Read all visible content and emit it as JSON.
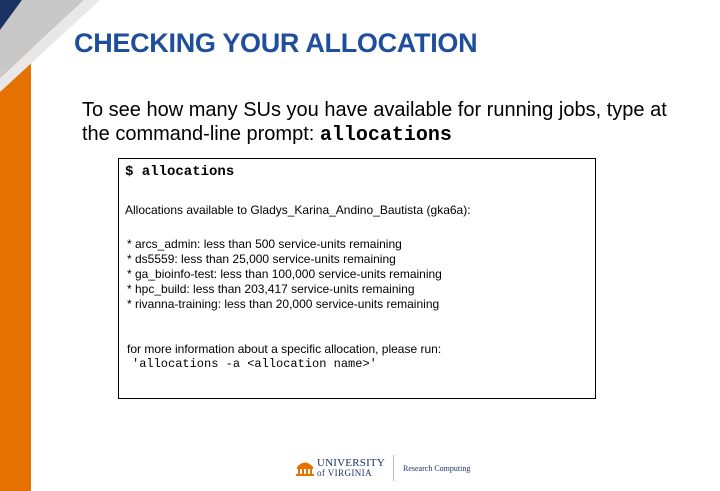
{
  "slide": {
    "title": "CHECKING YOUR ALLOCATION",
    "intro_text": "To see how many SUs you have available for running jobs, type at the command-line prompt:",
    "intro_command": "allocations"
  },
  "terminal": {
    "prompt": "$ allocations",
    "header": "Allocations available to Gladys_Karina_Andino_Bautista (gka6a):",
    "items": [
      "* arcs_admin: less than 500 service-units remaining",
      "* ds5559: less than 25,000 service-units remaining",
      "* ga_bioinfo-test: less than 100,000 service-units remaining",
      "* hpc_build: less than 203,417 service-units remaining",
      "* rivanna-training: less than 20,000 service-units remaining"
    ],
    "more_info": "for more information about a specific allocation, please run:",
    "run_command": "'allocations -a <allocation name>'"
  },
  "footer": {
    "logo_line1": "UNIVERSITY",
    "logo_line2": "of VIRGINIA",
    "department": "Research Computing"
  },
  "colors": {
    "accent": "#e57200",
    "title": "#1f4e9c",
    "navy": "#1b3363"
  },
  "icons": [
    "rotunda-icon"
  ]
}
